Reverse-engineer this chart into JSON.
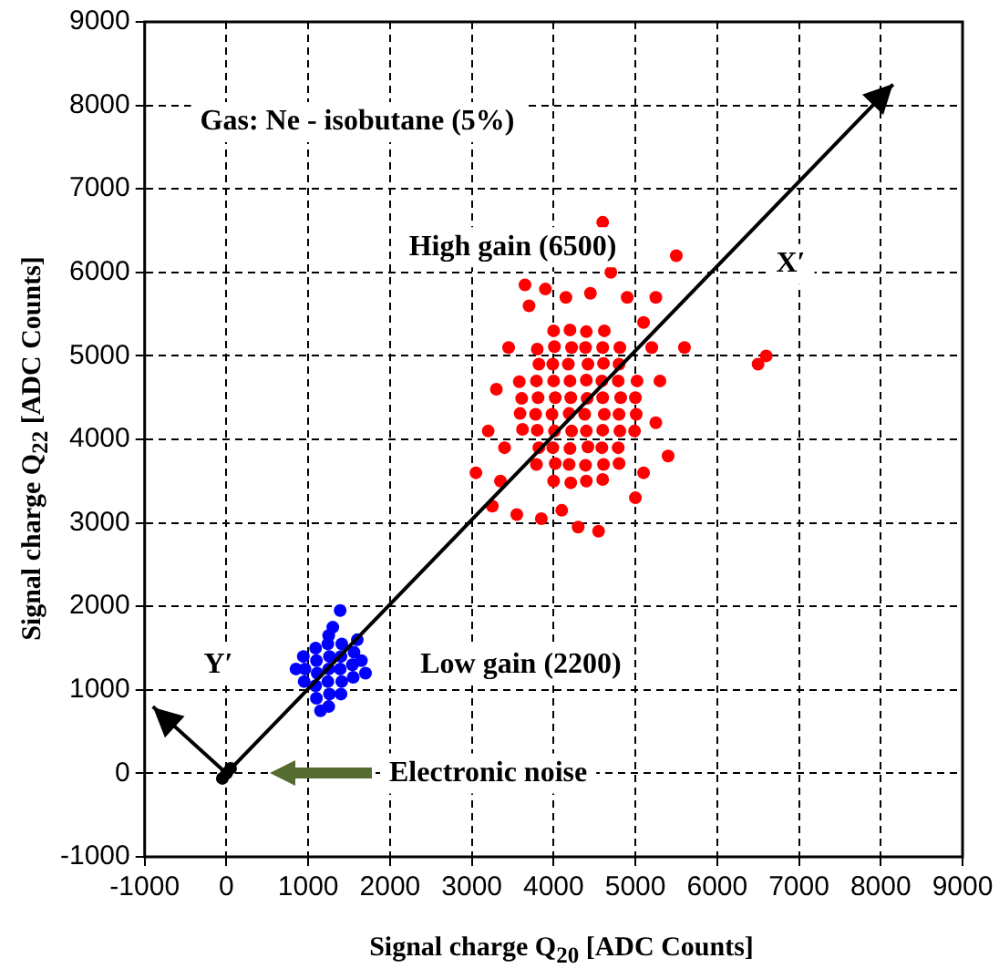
{
  "chart_data": {
    "type": "scatter",
    "xlabel": "Signal charge Q$_{20}$ [ADC Counts]",
    "ylabel": "Signal charge Q$_{22}$ [ADC Counts]",
    "xlim": [
      -1000,
      9000
    ],
    "xticks": [
      -1000,
      0,
      1000,
      2000,
      3000,
      4000,
      5000,
      6000,
      7000,
      8000,
      9000
    ],
    "ylim": [
      -1000,
      9000
    ],
    "yticks": [
      -1000,
      0,
      1000,
      2000,
      3000,
      4000,
      5000,
      6000,
      7000,
      8000,
      9000
    ],
    "grid": true,
    "legend": false,
    "series": [
      {
        "type": "line",
        "color": "#000000",
        "marker": "none",
        "x": [
          0,
          8150
        ],
        "values": [
          0,
          8250
        ]
      },
      {
        "type": "line",
        "color": "#000000",
        "marker": "none",
        "x": [
          0,
          -900
        ],
        "values": [
          0,
          800
        ]
      },
      {
        "color": "#ff0000",
        "marker": "circle",
        "x": [
          3620,
          3590,
          3610,
          3580,
          3790,
          3820,
          3800,
          3780,
          3810,
          3790,
          3820,
          3800,
          4000,
          4020,
          3990,
          4010,
          3980,
          4020,
          4000,
          3990,
          4010,
          4000,
          4210,
          4190,
          4200,
          4220,
          4190,
          4210,
          4200,
          4180,
          4220,
          4200,
          4400,
          4390,
          4420,
          4400,
          4380,
          4410,
          4400,
          4420,
          4390,
          4400,
          4600,
          4610,
          4590,
          4600,
          4620,
          4600,
          4590,
          4610,
          4600,
          4620,
          4800,
          4790,
          4810,
          4800,
          4820,
          4790,
          4800,
          4810,
          4990,
          5010,
          5000,
          5020,
          3050,
          3250,
          3400,
          3300,
          3450,
          3550,
          3700,
          3650,
          3900,
          3850,
          4100,
          4300,
          4150,
          4450,
          4600,
          4700,
          4550,
          4900,
          5100,
          5200,
          5300,
          5250,
          5400,
          5100,
          5000,
          5500,
          5600,
          6500,
          6600,
          3350,
          5250,
          3200
        ],
        "values": [
          4120,
          4310,
          4490,
          4690,
          3700,
          3900,
          4110,
          4300,
          4500,
          4700,
          4900,
          5080,
          3500,
          3710,
          3900,
          4100,
          4300,
          4500,
          4700,
          4900,
          5110,
          5300,
          3480,
          3700,
          3890,
          4100,
          4310,
          4500,
          4700,
          4900,
          5100,
          5310,
          3500,
          3690,
          3910,
          4100,
          4300,
          4490,
          4710,
          4900,
          5100,
          5290,
          3520,
          3700,
          3900,
          4110,
          4300,
          4500,
          4700,
          4910,
          5100,
          5300,
          3710,
          3900,
          4100,
          4300,
          4500,
          4700,
          4900,
          5100,
          4100,
          4300,
          4500,
          4700,
          3600,
          3200,
          3900,
          4600,
          5100,
          3100,
          5600,
          5850,
          5800,
          3050,
          3150,
          2950,
          5700,
          5750,
          6600,
          6000,
          2900,
          5700,
          5400,
          5100,
          4700,
          4200,
          3800,
          3600,
          3300,
          6200,
          5100,
          4900,
          5000,
          3500,
          5700,
          4100
        ]
      },
      {
        "color": "#0000ff",
        "marker": "circle",
        "x": [
          950,
          960,
          940,
          1100,
          1090,
          1110,
          1100,
          1090,
          1250,
          1260,
          1240,
          1250,
          1260,
          1240,
          1250,
          1400,
          1410,
          1390,
          1400,
          1410,
          1550,
          1540,
          1560,
          1390,
          1650,
          850,
          1150,
          1600,
          1300,
          1700
        ],
        "values": [
          1100,
          1250,
          1400,
          900,
          1050,
          1200,
          1350,
          1500,
          800,
          950,
          1100,
          1250,
          1400,
          1550,
          1650,
          950,
          1100,
          1250,
          1400,
          1550,
          1150,
          1300,
          1450,
          1950,
          1350,
          1250,
          750,
          1600,
          1750,
          1200
        ]
      },
      {
        "color": "#000000",
        "marker": "circle",
        "x": [
          -50,
          0,
          50
        ],
        "values": [
          -60,
          0,
          60
        ]
      }
    ],
    "annotations": [
      "Gas: Ne - isobutane (5%)",
      "High gain (6500)",
      "Low gain (2200)",
      "Electronic noise",
      "X′",
      "Y′"
    ]
  }
}
